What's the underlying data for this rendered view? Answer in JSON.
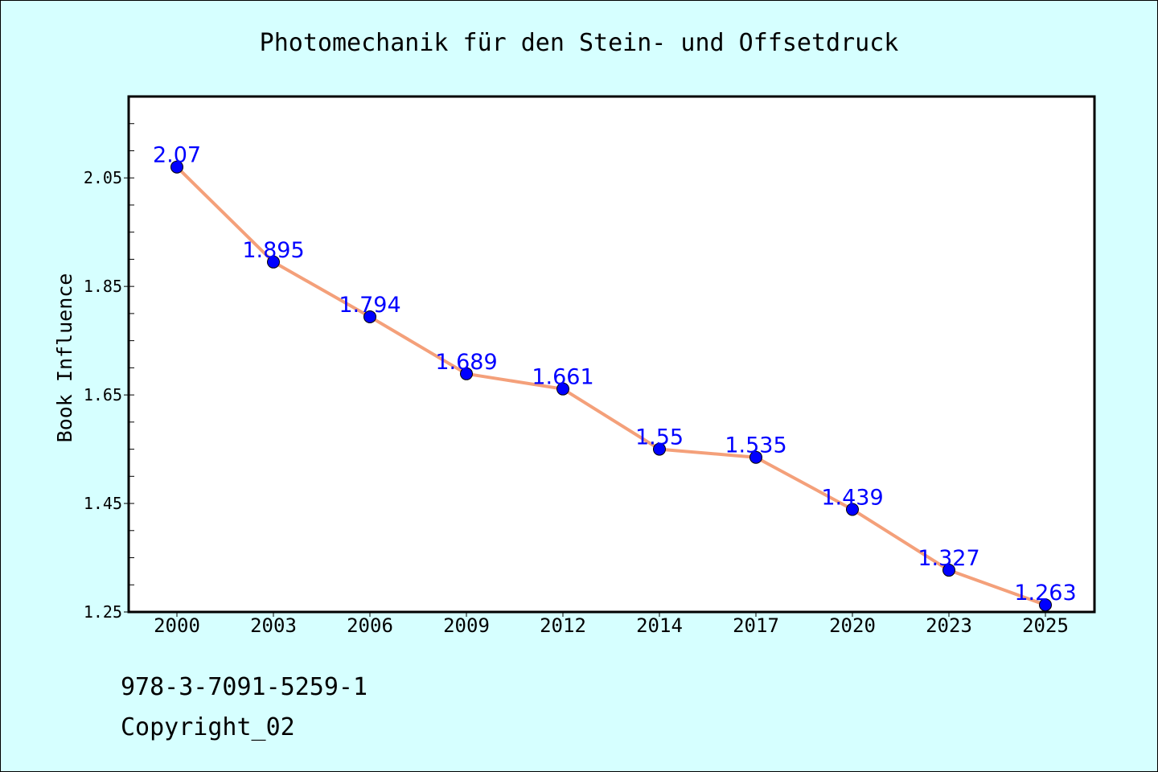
{
  "chart_data": {
    "type": "line",
    "title": "Photomechanik für den Stein- und Offsetdruck",
    "xlabel": "",
    "ylabel": "Book Influence",
    "categories": [
      "2000",
      "2003",
      "2006",
      "2009",
      "2012",
      "2014",
      "2017",
      "2020",
      "2023",
      "2025"
    ],
    "series": [
      {
        "values": [
          2.07,
          1.895,
          1.794,
          1.689,
          1.661,
          1.55,
          1.535,
          1.439,
          1.327,
          1.263
        ],
        "labels": [
          "2.07",
          "1.895",
          "1.794",
          "1.689",
          "1.661",
          "1.55",
          "1.535",
          "1.439",
          "1.327",
          "1.263"
        ]
      }
    ],
    "yticks": [
      "1.25",
      "1.45",
      "1.65",
      "1.85",
      "2.05"
    ],
    "ylim": [
      1.25,
      2.2
    ],
    "grid": false,
    "colors": {
      "line": "#f4a07a",
      "marker": "#0000ff",
      "data_label": "#0000ff",
      "background": "#d6ffff",
      "plot_background": "#ffffff"
    }
  },
  "footer": {
    "isbn": "978-3-7091-5259-1",
    "copyright": "Copyright_02"
  }
}
